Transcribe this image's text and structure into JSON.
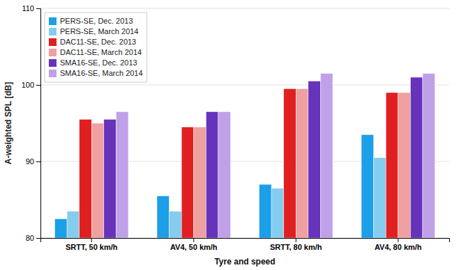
{
  "chart_data": {
    "type": "bar",
    "categories": [
      "SRTT, 50 km/h",
      "AV4, 50 km/h",
      "SRTT, 80 km/h",
      "AV4, 80 km/h"
    ],
    "series": [
      {
        "name": "PERS-SE, Dec. 2013",
        "color": "#1B9FE8",
        "values": [
          82.5,
          85.5,
          87.0,
          93.5
        ]
      },
      {
        "name": "PERS-SE, March 2014",
        "color": "#85CDEF",
        "values": [
          83.5,
          83.5,
          86.5,
          90.5
        ]
      },
      {
        "name": "DAC11-SE, Dec. 2013",
        "color": "#E02020",
        "values": [
          95.5,
          94.5,
          99.5,
          99.0
        ]
      },
      {
        "name": "DAC11-SE, March 2014",
        "color": "#F0A0A0",
        "values": [
          95.0,
          94.5,
          99.5,
          99.0
        ]
      },
      {
        "name": "SMA16-SE, Dec. 2013",
        "color": "#6633BB",
        "values": [
          95.5,
          96.5,
          100.5,
          101.0
        ]
      },
      {
        "name": "SMA16-SE, March 2014",
        "color": "#C0A0E8",
        "values": [
          96.5,
          96.5,
          101.5,
          101.5
        ]
      }
    ],
    "y_label": "A-weighted SPL [dB]",
    "x_label": "Tyre and speed",
    "ylim": [
      80,
      110
    ],
    "yticks": [
      80,
      90,
      100,
      110
    ],
    "grid": true,
    "legend": "upper-left"
  }
}
